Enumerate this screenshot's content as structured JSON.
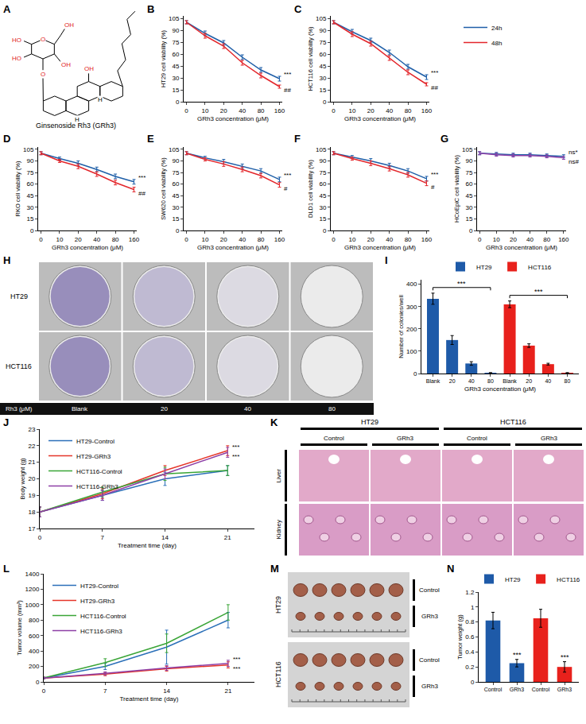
{
  "chart_data": [
    {
      "panel": "B",
      "type": "line",
      "x_label": "GRh3 concentration (μM)",
      "y_label": "HT29 cell viability (%)",
      "categories": [
        "0",
        "10",
        "20",
        "40",
        "80",
        "160"
      ],
      "ylim": [
        0,
        108
      ],
      "yticks": [
        0,
        15,
        30,
        45,
        60,
        75,
        90,
        105
      ],
      "grid": false,
      "series": [
        {
          "name": "24h",
          "color": "#1f5fa8",
          "values": [
            100,
            86,
            74,
            56,
            40,
            29
          ],
          "errors": [
            2,
            3,
            3,
            3,
            3,
            3
          ]
        },
        {
          "name": "48h",
          "color": "#e3262b",
          "values": [
            100,
            83,
            70,
            49,
            33,
            19
          ],
          "errors": [
            2,
            3,
            3,
            3,
            3,
            2
          ]
        }
      ],
      "annotations": [
        {
          "text": "***",
          "series": "24h"
        },
        {
          "text": "##",
          "series": "48h"
        }
      ]
    },
    {
      "panel": "C",
      "type": "line",
      "x_label": "GRh3 concentration (μM)",
      "y_label": "HCT116 cell viability (%)",
      "categories": [
        "0",
        "10",
        "20",
        "40",
        "80",
        "160"
      ],
      "ylim": [
        0,
        108
      ],
      "yticks": [
        0,
        15,
        30,
        45,
        60,
        75,
        90,
        105
      ],
      "grid": false,
      "legend": "right",
      "series": [
        {
          "name": "24h",
          "color": "#1f5fa8",
          "values": [
            100,
            88,
            77,
            62,
            44,
            31
          ],
          "errors": [
            2,
            3,
            3,
            3,
            3,
            3
          ]
        },
        {
          "name": "48h",
          "color": "#e3262b",
          "values": [
            100,
            85,
            73,
            55,
            37,
            22
          ],
          "errors": [
            2,
            3,
            3,
            3,
            3,
            2
          ]
        }
      ],
      "annotations": [
        {
          "text": "***",
          "series": "24h"
        },
        {
          "text": "##",
          "series": "48h"
        }
      ]
    },
    {
      "panel": "D",
      "type": "line",
      "x_label": "GRh3 concentration (μM)",
      "y_label": "RKO cell viability (%)",
      "categories": [
        "0",
        "10",
        "20",
        "40",
        "80",
        "160"
      ],
      "ylim": [
        0,
        108
      ],
      "yticks": [
        0,
        15,
        30,
        45,
        60,
        75,
        90,
        105
      ],
      "grid": false,
      "series": [
        {
          "name": "24h",
          "color": "#1f5fa8",
          "values": [
            100,
            93,
            87,
            79,
            70,
            63
          ],
          "errors": [
            2,
            2,
            3,
            3,
            3,
            3
          ]
        },
        {
          "name": "48h",
          "color": "#e3262b",
          "values": [
            100,
            90,
            83,
            73,
            62,
            53
          ],
          "errors": [
            2,
            2,
            3,
            3,
            3,
            3
          ]
        }
      ],
      "annotations": [
        {
          "text": "***",
          "series": "24h"
        },
        {
          "text": "##",
          "series": "48h"
        }
      ]
    },
    {
      "panel": "E",
      "type": "line",
      "x_label": "GRh3 concentration (μM)",
      "y_label": "SW620 cell viability (%)",
      "categories": [
        "0",
        "10",
        "20",
        "40",
        "80",
        "160"
      ],
      "ylim": [
        0,
        108
      ],
      "yticks": [
        0,
        15,
        30,
        45,
        60,
        75,
        90,
        105
      ],
      "grid": false,
      "series": [
        {
          "name": "24h",
          "color": "#1f5fa8",
          "values": [
            100,
            94,
            89,
            83,
            77,
            66
          ],
          "errors": [
            2,
            2,
            3,
            3,
            3,
            3
          ]
        },
        {
          "name": "48h",
          "color": "#e3262b",
          "values": [
            100,
            92,
            86,
            79,
            71,
            59
          ],
          "errors": [
            2,
            2,
            3,
            3,
            3,
            3
          ]
        }
      ],
      "annotations": [
        {
          "text": "***",
          "series": "24h"
        },
        {
          "text": "#",
          "series": "48h"
        }
      ]
    },
    {
      "panel": "F",
      "type": "line",
      "x_label": "GRh3 concentration (μM)",
      "y_label": "DLD1 cell viability (%)",
      "categories": [
        "0",
        "10",
        "20",
        "40",
        "80",
        "160"
      ],
      "ylim": [
        0,
        108
      ],
      "yticks": [
        0,
        15,
        30,
        45,
        60,
        75,
        90,
        105
      ],
      "grid": false,
      "series": [
        {
          "name": "24h",
          "color": "#1f5fa8",
          "values": [
            100,
            95,
            90,
            84,
            77,
            67
          ],
          "errors": [
            2,
            2,
            3,
            3,
            3,
            3
          ]
        },
        {
          "name": "48h",
          "color": "#e3262b",
          "values": [
            100,
            93,
            87,
            80,
            72,
            61
          ],
          "errors": [
            2,
            2,
            3,
            3,
            3,
            3
          ]
        }
      ],
      "annotations": [
        {
          "text": "***",
          "series": "24h"
        },
        {
          "text": "#",
          "series": "48h"
        }
      ]
    },
    {
      "panel": "G",
      "type": "line",
      "x_label": "GRh3 concentration (μM)",
      "y_label": "HCoEpiC cell viability (%)",
      "categories": [
        "0",
        "10",
        "20",
        "40",
        "80",
        "160"
      ],
      "ylim": [
        0,
        108
      ],
      "yticks": [
        0,
        15,
        30,
        45,
        60,
        75,
        90,
        105
      ],
      "grid": false,
      "series": [
        {
          "name": "24h",
          "color": "#1f5fa8",
          "values": [
            100,
            99,
            98,
            98,
            97,
            96
          ],
          "errors": [
            2,
            2,
            2,
            2,
            2,
            2
          ]
        },
        {
          "name": "48h",
          "color": "#8e3fa6",
          "values": [
            100,
            98,
            97,
            97,
            96,
            94
          ],
          "errors": [
            2,
            2,
            2,
            2,
            2,
            2
          ]
        }
      ],
      "annotations": [
        {
          "text": "ns*",
          "series": "24h"
        },
        {
          "text": "ns#",
          "series": "48h"
        }
      ]
    },
    {
      "panel": "I",
      "type": "bar",
      "x_label": "GRh3 concentration (μM)",
      "y_label": "Number of colonies/well",
      "categories": [
        "Blank",
        "20",
        "40",
        "80",
        "Blank",
        "20",
        "40",
        "80"
      ],
      "ylim": [
        0,
        420
      ],
      "yticks": [
        0,
        100,
        200,
        300,
        400
      ],
      "grid": false,
      "legend": "top",
      "series": [
        {
          "name": "HT29",
          "color": "#1e5aa8",
          "values": [
            335,
            150,
            45,
            3,
            null,
            null,
            null,
            null
          ],
          "errors": [
            25,
            20,
            8,
            1,
            null,
            null,
            null,
            null
          ]
        },
        {
          "name": "HCT116",
          "color": "#e8211c",
          "values": [
            null,
            null,
            null,
            null,
            310,
            125,
            42,
            3
          ],
          "errors": [
            null,
            null,
            null,
            null,
            15,
            8,
            4,
            1
          ]
        }
      ],
      "annotations": [
        {
          "text": "***",
          "series": "HT29"
        },
        {
          "text": "***",
          "series": "HCT116"
        }
      ]
    },
    {
      "panel": "J",
      "type": "line",
      "x_label": "Treatment time (day)",
      "y_label": "Body weight (g)",
      "x": [
        0,
        7,
        14,
        21
      ],
      "xlim": [
        0,
        24
      ],
      "xticks": [
        0,
        7,
        14,
        21
      ],
      "ylim": [
        17,
        23
      ],
      "yticks": [
        17,
        18,
        19,
        20,
        21,
        22,
        23
      ],
      "grid": false,
      "legend": "top left",
      "series": [
        {
          "name": "HT29-Control",
          "color": "#2a6fb8",
          "values": [
            18,
            19.0,
            20.0,
            20.5
          ],
          "errors": [
            0.3,
            0.3,
            0.4,
            0.3
          ]
        },
        {
          "name": "HT29-GRh3",
          "color": "#e53529",
          "values": [
            18,
            19.1,
            20.5,
            21.7
          ],
          "errors": [
            0.3,
            0.3,
            0.3,
            0.3
          ]
        },
        {
          "name": "HCT116-Control",
          "color": "#3aa537",
          "values": [
            18,
            19.2,
            20.3,
            20.5
          ],
          "errors": [
            0.3,
            0.3,
            0.4,
            0.3
          ]
        },
        {
          "name": "HCT116-GRh3",
          "color": "#8d3fa6",
          "values": [
            18,
            19.0,
            20.3,
            21.6
          ],
          "errors": [
            0.3,
            0.3,
            0.3,
            0.3
          ]
        }
      ],
      "annotations": [
        {
          "text": "***",
          "series": "HT29-GRh3"
        },
        {
          "text": "***",
          "series": "HCT116-GRh3"
        }
      ]
    },
    {
      "panel": "L",
      "type": "line",
      "x_label": "Treatment time (day)",
      "y_label": "Tumor volume (mm³)",
      "x": [
        0,
        7,
        14,
        21
      ],
      "xlim": [
        0,
        24
      ],
      "xticks": [
        0,
        7,
        14,
        21
      ],
      "ylim": [
        0,
        1400
      ],
      "yticks": [
        0,
        200,
        400,
        600,
        800,
        1000,
        1200,
        1400
      ],
      "grid": false,
      "legend": "top left",
      "series": [
        {
          "name": "HT29-Control",
          "color": "#2a6fb8",
          "values": [
            50,
            200,
            450,
            800
          ],
          "errors": [
            10,
            40,
            220,
            100
          ]
        },
        {
          "name": "HT29-GRh3",
          "color": "#e53529",
          "values": [
            50,
            100,
            170,
            220
          ],
          "errors": [
            10,
            20,
            30,
            40
          ]
        },
        {
          "name": "HCT116-Control",
          "color": "#3aa537",
          "values": [
            50,
            250,
            500,
            900
          ],
          "errors": [
            10,
            50,
            120,
            100
          ]
        },
        {
          "name": "HCT116-GRh3",
          "color": "#8d3fa6",
          "values": [
            50,
            110,
            180,
            240
          ],
          "errors": [
            10,
            20,
            30,
            40
          ]
        }
      ],
      "annotations": [
        {
          "text": "***",
          "series": "HT29-GRh3"
        },
        {
          "text": "***",
          "series": "HCT116-GRh3"
        }
      ]
    },
    {
      "panel": "N",
      "type": "bar",
      "y_label": "Tumor weight (g)",
      "categories": [
        "Control",
        "GRh3",
        "Control",
        "GRh3"
      ],
      "ylim": [
        0,
        1.2
      ],
      "yticks": [
        0,
        0.2,
        0.4,
        0.6,
        0.8,
        1,
        1.2
      ],
      "grid": false,
      "legend": "top",
      "series": [
        {
          "name": "HT29",
          "color": "#1e5aa8",
          "values": [
            0.82,
            0.25,
            null,
            null
          ],
          "errors": [
            0.11,
            0.05,
            null,
            null
          ]
        },
        {
          "name": "HCT116",
          "color": "#e8211c",
          "values": [
            null,
            null,
            0.85,
            0.2
          ],
          "errors": [
            null,
            null,
            0.12,
            0.07
          ]
        }
      ],
      "annotations": [
        {
          "text": "***",
          "category": 1
        },
        {
          "text": "***",
          "category": 3
        }
      ]
    }
  ],
  "figure_panels": {
    "A": {
      "label": "A",
      "caption": "Ginsenoside Rh3 (GRh3)",
      "atoms": [
        "OH",
        "HO",
        "HO",
        "OH",
        "O",
        "O",
        "OH",
        "H",
        "H"
      ]
    },
    "H": {
      "label": "H",
      "rows": [
        "HT29",
        "HCT116"
      ],
      "columns": [
        "Blank",
        "20",
        "40",
        "80"
      ],
      "axis_label": "Rh3 (μM)"
    },
    "K": {
      "label": "K",
      "groups": [
        "HT29",
        "HCT116"
      ],
      "columns": [
        "Control",
        "GRh3"
      ],
      "rows": [
        "Liver",
        "Kidney"
      ]
    },
    "M": {
      "label": "M",
      "rows": [
        "HT29",
        "HCT116"
      ],
      "lanes": [
        "Control",
        "GRh3"
      ]
    }
  }
}
